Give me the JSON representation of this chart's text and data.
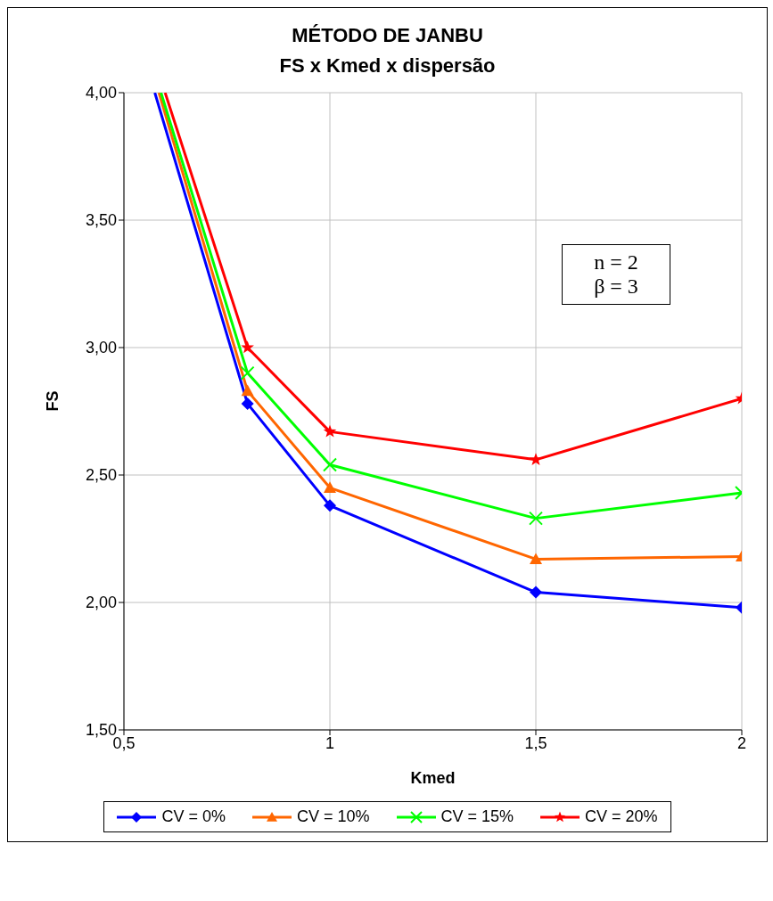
{
  "chart_data": {
    "type": "line",
    "title": "MÉTODO DE JANBU",
    "subtitle": "FS x Kmed x dispersão",
    "xlabel": "Kmed",
    "ylabel": "FS",
    "xlim": [
      0.5,
      2
    ],
    "xticks": [
      {
        "value": 0.5,
        "label": "0,5"
      },
      {
        "value": 1,
        "label": "1"
      },
      {
        "value": 1.5,
        "label": "1,5"
      },
      {
        "value": 2,
        "label": "2"
      }
    ],
    "ylim": [
      1.5,
      4
    ],
    "yticks": [
      {
        "value": 1.5,
        "label": "1,50"
      },
      {
        "value": 2,
        "label": "2,00"
      },
      {
        "value": 2.5,
        "label": "2,50"
      },
      {
        "value": 3,
        "label": "3,00"
      },
      {
        "value": 3.5,
        "label": "3,50"
      },
      {
        "value": 4,
        "label": "4,00"
      }
    ],
    "grid": true,
    "legend": "bottom",
    "annotations": [
      "n = 2",
      "β = 3"
    ],
    "series": [
      {
        "name": "CV = 0%",
        "color": "#0000ff",
        "marker": "diamond",
        "x": [
          0.575,
          0.8,
          1,
          1.5,
          2
        ],
        "values": [
          4,
          2.78,
          2.38,
          2.04,
          1.98
        ]
      },
      {
        "name": "CV = 10%",
        "color": "#ff6600",
        "marker": "triangle",
        "x": [
          0.585,
          0.8,
          1,
          1.5,
          2
        ],
        "values": [
          4,
          2.83,
          2.45,
          2.17,
          2.18
        ]
      },
      {
        "name": "CV = 15%",
        "color": "#00ff00",
        "marker": "cross",
        "x": [
          0.59,
          0.8,
          1,
          1.5,
          2
        ],
        "values": [
          4,
          2.9,
          2.54,
          2.33,
          2.43
        ]
      },
      {
        "name": "CV = 20%",
        "color": "#ff0000",
        "marker": "star",
        "x": [
          0.6,
          0.8,
          1,
          1.5,
          2
        ],
        "values": [
          4,
          3,
          2.67,
          2.56,
          2.8
        ]
      }
    ]
  }
}
